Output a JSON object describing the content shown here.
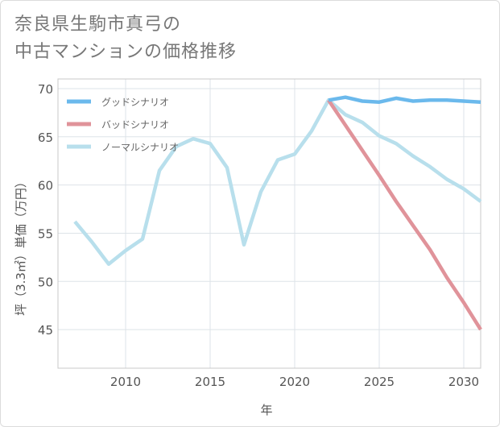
{
  "title_lines": [
    "奈良県生駒市真弓の",
    "中古マンションの価格推移"
  ],
  "chart_data": {
    "type": "line",
    "title": "奈良県生駒市真弓の中古マンションの価格推移",
    "xlabel": "年",
    "ylabel": "坪（3.3㎡）単価（万円）",
    "xlim": [
      2006,
      2031
    ],
    "ylim": [
      41,
      71
    ],
    "xticks": [
      2010,
      2015,
      2020,
      2025,
      2030
    ],
    "yticks": [
      45,
      50,
      55,
      60,
      65,
      70
    ],
    "grid": true,
    "legend_position": "top-left",
    "series": [
      {
        "name": "グッドシナリオ",
        "color": "#6bb9ec",
        "x": [
          2022,
          2023,
          2024,
          2025,
          2026,
          2027,
          2028,
          2029,
          2030,
          2031
        ],
        "values": [
          68.8,
          69.1,
          68.7,
          68.6,
          69.0,
          68.7,
          68.8,
          68.8,
          68.7,
          68.6
        ]
      },
      {
        "name": "バッドシナリオ",
        "color": "#e0939a",
        "x": [
          2022,
          2023,
          2024,
          2025,
          2026,
          2027,
          2028,
          2029,
          2030,
          2031
        ],
        "values": [
          68.8,
          66.2,
          63.6,
          61.0,
          58.3,
          55.8,
          53.3,
          50.4,
          47.8,
          45.0
        ]
      },
      {
        "name": "ノーマルシナリオ",
        "color": "#b8dfec",
        "x": [
          2007,
          2008,
          2009,
          2010,
          2011,
          2012,
          2013,
          2014,
          2015,
          2016,
          2017,
          2018,
          2019,
          2020,
          2021,
          2022,
          2023,
          2024,
          2025,
          2026,
          2027,
          2028,
          2029,
          2030,
          2031
        ],
        "values": [
          56.2,
          54.1,
          51.8,
          53.2,
          54.4,
          61.5,
          64.0,
          64.8,
          64.3,
          61.8,
          53.8,
          59.3,
          62.6,
          63.2,
          65.6,
          68.8,
          67.3,
          66.5,
          65.1,
          64.3,
          63.0,
          61.9,
          60.6,
          59.6,
          58.3
        ]
      }
    ]
  }
}
